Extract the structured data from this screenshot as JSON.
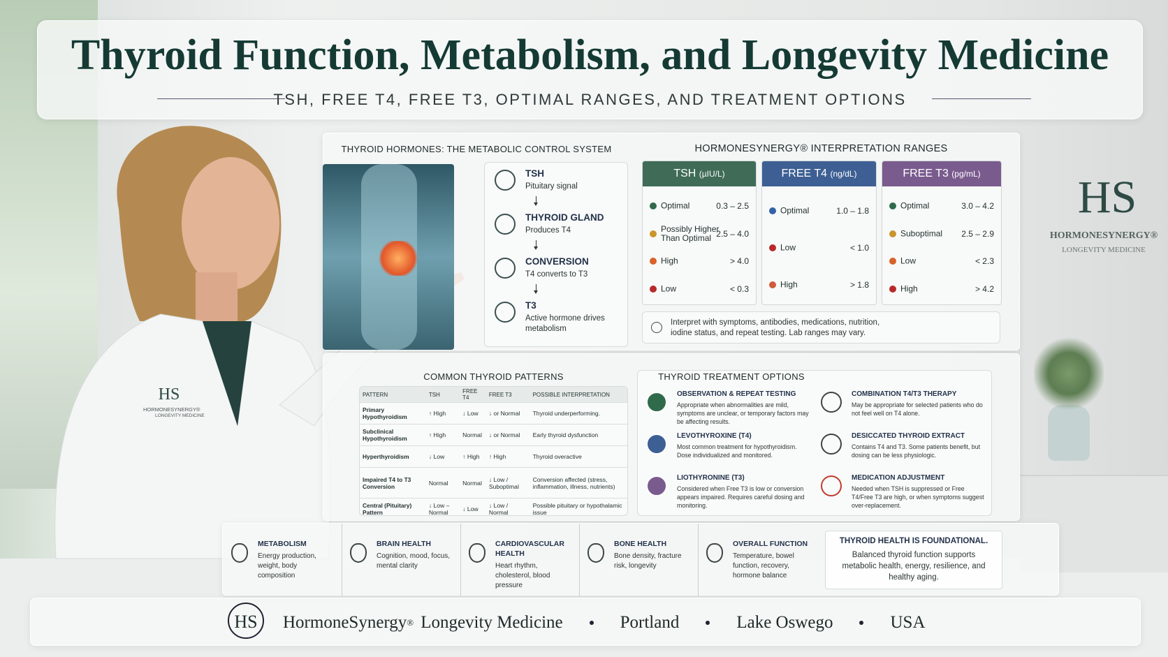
{
  "header": {
    "title": "Thyroid Function, Metabolism, and Longevity Medicine",
    "subtitle": "TSH, FREE T4, FREE T3, OPTIMAL RANGES, AND TREATMENT OPTIONS"
  },
  "wall_logo": {
    "monogram": "HS",
    "name": "HORMONESYNERGY®",
    "tagline": "LONGEVITY MEDICINE"
  },
  "coat_logo": {
    "monogram": "HS",
    "name": "HORMONESYNERGY®",
    "tagline": "LONGEVITY MEDICINE"
  },
  "hormones": {
    "title": "THYROID HORMONES: THE METABOLIC CONTROL SYSTEM",
    "steps": [
      {
        "name": "TSH",
        "desc": "Pituitary signal"
      },
      {
        "name": "THYROID GLAND",
        "desc": "Produces T4"
      },
      {
        "name": "CONVERSION",
        "desc": "T4 converts to T3"
      },
      {
        "name": "T3",
        "desc": "Active hormone drives metabolism"
      }
    ]
  },
  "ranges": {
    "title": "HORMONESYNERGY® INTERPRETATION RANGES",
    "cards": [
      {
        "name": "TSH",
        "unit": "(µIU/L)",
        "color": "#3f6b57",
        "rows": [
          {
            "label": "Optimal",
            "range": "0.3 – 2.5",
            "color": "#2f6b4a"
          },
          {
            "label": "Possibly Higher Than Optimal",
            "range": "2.5 – 4.0",
            "color": "#c9962e"
          },
          {
            "label": "High",
            "range": "> 4.0",
            "color": "#d9622b"
          },
          {
            "label": "Low",
            "range": "< 0.3",
            "color": "#b82a2a"
          }
        ]
      },
      {
        "name": "FREE T4",
        "unit": "(ng/dL)",
        "color": "#3d5f93",
        "rows": [
          {
            "label": "Optimal",
            "range": "1.0 – 1.8",
            "color": "#3461a8"
          },
          {
            "label": "Low",
            "range": "< 1.0",
            "color": "#b82a2a"
          },
          {
            "label": "High",
            "range": "> 1.8",
            "color": "#d05a3a"
          }
        ]
      },
      {
        "name": "FREE T3",
        "unit": "(pg/mL)",
        "color": "#7a5b8e",
        "rows": [
          {
            "label": "Optimal",
            "range": "3.0 – 4.2",
            "color": "#2f6b4a"
          },
          {
            "label": "Suboptimal",
            "range": "2.5 – 2.9",
            "color": "#c9962e"
          },
          {
            "label": "Low",
            "range": "< 2.3",
            "color": "#d9622b"
          },
          {
            "label": "High",
            "range": "> 4.2",
            "color": "#b82a2a"
          }
        ]
      }
    ],
    "note": "Interpret with symptoms, antibodies, medications, nutrition, iodine status, and repeat testing. Lab ranges may vary."
  },
  "patterns": {
    "title": "COMMON THYROID PATTERNS",
    "columns": [
      "PATTERN",
      "TSH",
      "FREE T4",
      "FREE T3",
      "POSSIBLE INTERPRETATION"
    ],
    "rows": [
      [
        "Primary Hypothyroidism",
        "↑ High",
        "↓ Low",
        "↓ or Normal",
        "Thyroid underperforming."
      ],
      [
        "Subclinical Hypothyroidism",
        "↑ High",
        "Normal",
        "↓ or Normal",
        "Early thyroid dysfunction"
      ],
      [
        "Hyperthyroidism",
        "↓ Low",
        "↑ High",
        "↑ High",
        "Thyroid overactive"
      ],
      [
        "Impaired T4 to T3 Conversion",
        "Normal",
        "Normal",
        "↓ Low / Suboptimal",
        "Conversion affected (stress, inflammation, illness, nutrients)"
      ],
      [
        "Central (Pituitary) Pattern",
        "↓ Low – Normal",
        "↓ Low",
        "↓ Low / Normal",
        "Possible pituitary or hypothalamic issue"
      ]
    ]
  },
  "treatments": {
    "title": "THYROID TREATMENT OPTIONS",
    "items": [
      {
        "title": "OBSERVATION & REPEAT TESTING",
        "desc": "Appropriate when abnormalities are mild, symptoms are unclear, or temporary factors may be affecting results."
      },
      {
        "title": "LEVOTHYROXINE (T4)",
        "desc": "Most common treatment for hypothyroidism. Dose individualized and monitored."
      },
      {
        "title": "LIOTHYRONINE (T3)",
        "desc": "Considered when Free T3 is low or conversion appears impaired. Requires careful dosing and monitoring."
      },
      {
        "title": "COMBINATION T4/T3 THERAPY",
        "desc": "May be appropriate for selected patients who do not feel well on T4 alone."
      },
      {
        "title": "DESICCATED THYROID EXTRACT",
        "desc": "Contains T4 and T3. Some patients benefit, but dosing can be less physiologic."
      },
      {
        "title": "MEDICATION ADJUSTMENT",
        "desc": "Needed when TSH is suppressed or Free T4/Free T3 are high, or when symptoms suggest over-replacement."
      }
    ]
  },
  "benefits": {
    "items": [
      {
        "title": "METABOLISM",
        "desc": "Energy production, weight, body composition"
      },
      {
        "title": "BRAIN HEALTH",
        "desc": "Cognition, mood, focus, mental clarity"
      },
      {
        "title": "CARDIOVASCULAR HEALTH",
        "desc": "Heart rhythm, cholesterol, blood pressure"
      },
      {
        "title": "BONE HEALTH",
        "desc": "Bone density, fracture risk, longevity"
      },
      {
        "title": "OVERALL FUNCTION",
        "desc": "Temperature, bowel function, recovery, hormone balance"
      }
    ],
    "callout": {
      "title": "THYROID HEALTH IS FOUNDATIONAL.",
      "text": "Balanced thyroid function supports metabolic health, energy, resilience, and healthy aging."
    }
  },
  "footer": {
    "monogram": "HS",
    "brand": "HormoneSynergy",
    "mark": "®",
    "suffix": "Longevity Medicine",
    "locations": [
      "Portland",
      "Lake Oswego",
      "USA"
    ]
  }
}
